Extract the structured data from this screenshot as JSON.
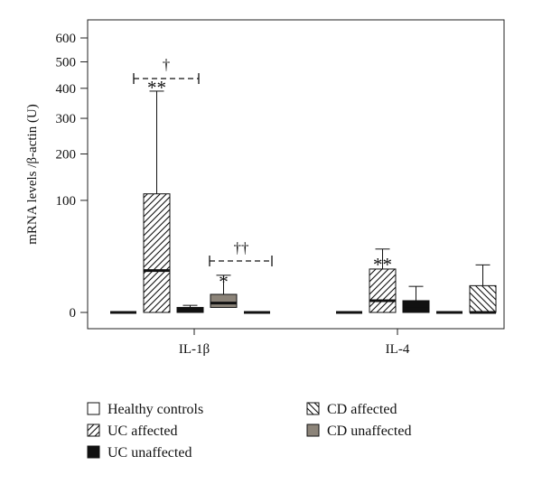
{
  "chart_data": {
    "type": "boxplot",
    "y_axis_label": "mRNA levels /β-actin (U)",
    "y_ticks": [
      "0",
      "100",
      "200",
      "300",
      "400",
      "500",
      "600"
    ],
    "y_scale": "square-root",
    "groups": [
      "IL-1β",
      "IL-4"
    ],
    "legend": [
      {
        "label": "Healthy controls",
        "pattern": "white"
      },
      {
        "label": "UC affected",
        "pattern": "diagonal-hatch-up"
      },
      {
        "label": "UC unaffected",
        "pattern": "black"
      },
      {
        "label": "CD affected",
        "pattern": "diagonal-hatch-down"
      },
      {
        "label": "CD unaffected",
        "pattern": "gray"
      }
    ],
    "boxes": [
      {
        "group": "IL-1β",
        "series": "Healthy controls",
        "whisker_low": 0,
        "q1": 0,
        "median": 0,
        "q3": 0,
        "whisker_high": 0
      },
      {
        "group": "IL-1β",
        "series": "UC affected",
        "whisker_low": 0,
        "q1": 0,
        "median": 14,
        "q3": 112,
        "whisker_high": 390
      },
      {
        "group": "IL-1β",
        "series": "UC unaffected",
        "whisker_low": 0,
        "q1": 0,
        "median": 0.1,
        "q3": 0.2,
        "whisker_high": 0.4
      },
      {
        "group": "IL-1β",
        "series": "CD unaffected",
        "whisker_low": 0,
        "q1": 0.2,
        "median": 0.7,
        "q3": 2.6,
        "whisker_high": 11
      },
      {
        "group": "IL-1β",
        "series": "CD affected",
        "whisker_low": 0,
        "q1": 0,
        "median": 0,
        "q3": 0,
        "whisker_high": 0
      },
      {
        "group": "IL-4",
        "series": "Healthy controls",
        "whisker_low": 0,
        "q1": 0,
        "median": 0,
        "q3": 0,
        "whisker_high": 0
      },
      {
        "group": "IL-4",
        "series": "UC affected",
        "whisker_low": 0,
        "q1": 0,
        "median": 1.1,
        "q3": 15,
        "whisker_high": 32
      },
      {
        "group": "IL-4",
        "series": "UC unaffected",
        "whisker_low": 0,
        "q1": 0,
        "median": 0.1,
        "q3": 1.1,
        "whisker_high": 5.4
      },
      {
        "group": "IL-4",
        "series": "CD unaffected",
        "whisker_low": 0,
        "q1": 0,
        "median": 0,
        "q3": 0,
        "whisker_high": 0
      },
      {
        "group": "IL-4",
        "series": "CD affected",
        "whisker_low": 0,
        "q1": 0,
        "median": 0,
        "q3": 5.7,
        "whisker_high": 18
      }
    ],
    "annotations": [
      {
        "text": "**",
        "target": "IL-1β UC affected"
      },
      {
        "text": "†",
        "target": "IL-1β healthy controls vs UC affected"
      },
      {
        "text": "*",
        "target": "IL-1β CD unaffected"
      },
      {
        "text": "††",
        "target": "IL-1β CD unaffected vs CD affected"
      },
      {
        "text": "**",
        "target": "IL-4 UC affected"
      }
    ]
  }
}
